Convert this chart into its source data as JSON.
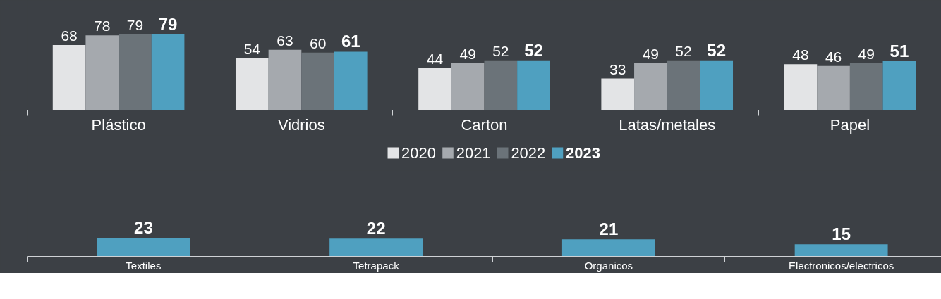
{
  "chart_data": [
    {
      "type": "bar",
      "categories": [
        "Plástico",
        "Vidrios",
        "Carton",
        "Latas/metales",
        "Papel"
      ],
      "series": [
        {
          "name": "2020",
          "color": "#e3e4e6",
          "values": [
            68,
            54,
            44,
            33,
            48
          ]
        },
        {
          "name": "2021",
          "color": "#a5a9ae",
          "values": [
            78,
            63,
            49,
            49,
            46
          ]
        },
        {
          "name": "2022",
          "color": "#6b7379",
          "values": [
            79,
            60,
            52,
            52,
            49
          ]
        },
        {
          "name": "2023",
          "color": "#4fa0c0",
          "values": [
            79,
            61,
            52,
            52,
            51
          ]
        }
      ],
      "data_labels": true,
      "legend": "bottom",
      "grid": false
    },
    {
      "type": "bar",
      "categories": [
        "Textiles",
        "Tetrapack",
        "Organicos",
        "Electronicos/electricos"
      ],
      "series": [
        {
          "color": "#4fa0c0",
          "values": [
            23,
            22,
            21,
            15
          ]
        }
      ],
      "data_labels": true,
      "grid": false
    }
  ]
}
